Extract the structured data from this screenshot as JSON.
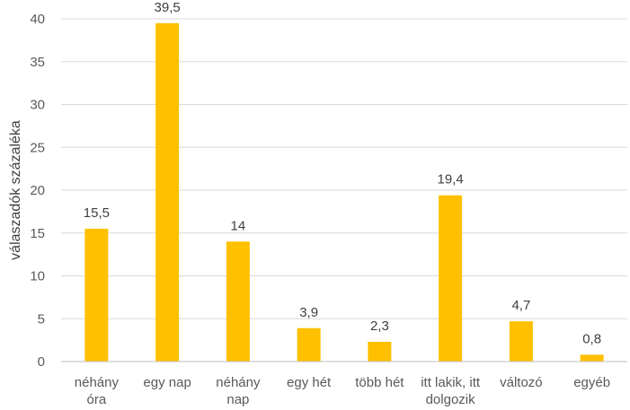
{
  "chart_data": {
    "type": "bar",
    "categories": [
      [
        "néhány",
        "óra"
      ],
      [
        "egy nap"
      ],
      [
        "néhány",
        "nap"
      ],
      [
        "egy hét"
      ],
      [
        "több hét"
      ],
      [
        "itt lakik, itt",
        "dolgozik"
      ],
      [
        "változó"
      ],
      [
        "egyéb"
      ]
    ],
    "values": [
      15.5,
      39.5,
      14,
      3.9,
      2.3,
      19.4,
      4.7,
      0.8
    ],
    "value_labels": [
      "15,5",
      "39,5",
      "14",
      "3,9",
      "2,3",
      "19,4",
      "4,7",
      "0,8"
    ],
    "title": "",
    "xlabel": "",
    "ylabel": "válaszadók százaléka",
    "ylim": [
      0,
      40
    ],
    "yticks": [
      0,
      5,
      10,
      15,
      20,
      25,
      30,
      35,
      40
    ],
    "grid": true,
    "legend": "none",
    "colors": {
      "bar": "#FFC000",
      "grid": "#D9D9D9",
      "axis": "#BFBFBF"
    }
  }
}
